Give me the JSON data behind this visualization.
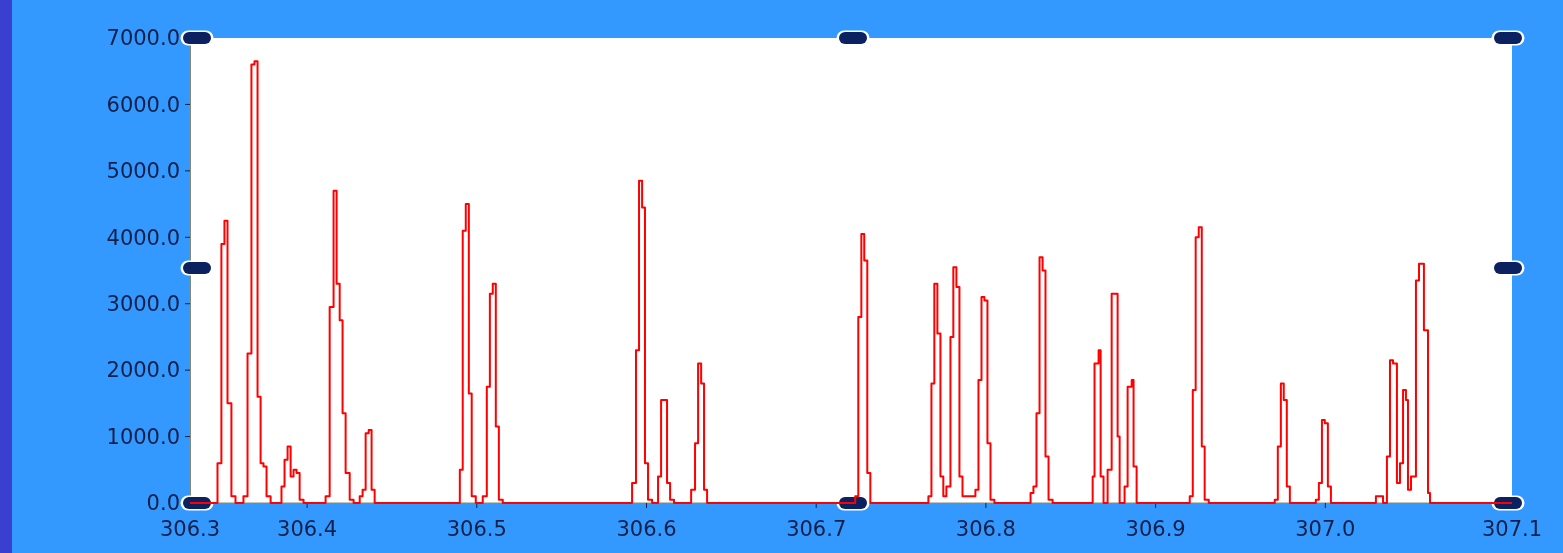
{
  "chart_data": {
    "type": "step",
    "color": "#ff0000",
    "x": [
      306.331,
      306.3436,
      306.3472,
      306.3495,
      306.3513,
      306.3531,
      306.3554,
      306.3578,
      306.3625,
      306.3649,
      306.3672,
      306.369,
      306.3708,
      306.3726,
      306.3743,
      306.3761,
      306.3785,
      306.3849,
      306.3867,
      306.3885,
      306.3903,
      306.392,
      306.3938,
      306.3956,
      306.3979,
      306.4109,
      306.4133,
      306.4156,
      306.4174,
      306.4192,
      306.4209,
      306.4227,
      306.4251,
      306.4274,
      306.431,
      306.4327,
      306.4345,
      306.4363,
      306.438,
      306.4398,
      306.4876,
      306.49,
      306.4917,
      306.4935,
      306.4953,
      306.497,
      306.4994,
      306.5035,
      306.5059,
      306.5077,
      306.5094,
      306.5112,
      306.513,
      306.5153,
      306.5915,
      306.5938,
      306.5956,
      306.5974,
      306.5991,
      306.6009,
      306.6033,
      306.6068,
      306.6086,
      306.6103,
      306.6121,
      306.6139,
      306.6162,
      306.6263,
      306.6286,
      306.6304,
      306.6322,
      306.6339,
      306.6357,
      306.723,
      306.7248,
      306.7266,
      306.7283,
      306.7301,
      306.7319,
      306.7661,
      306.7679,
      306.7696,
      306.7714,
      306.7732,
      306.7749,
      306.7767,
      306.7791,
      306.7808,
      306.7826,
      306.7844,
      306.7862,
      306.7938,
      306.7956,
      306.7974,
      306.7991,
      306.8009,
      306.8027,
      306.805,
      306.8263,
      306.828,
      306.8298,
      306.8316,
      306.8334,
      306.8351,
      306.8369,
      306.8393,
      306.8629,
      306.864,
      306.8664,
      306.8676,
      306.8693,
      306.8717,
      306.8741,
      306.8776,
      306.8788,
      306.8817,
      306.8835,
      306.8859,
      306.887,
      306.8888,
      306.9201,
      306.9219,
      306.9236,
      306.9254,
      306.9272,
      306.9289,
      306.9313,
      306.9702,
      306.972,
      306.9738,
      306.9755,
      306.9773,
      306.9791,
      306.9944,
      306.9962,
      306.998,
      306.9997,
      307.0015,
      307.0033,
      307.0298,
      307.034,
      307.0363,
      307.0381,
      307.0399,
      307.0422,
      307.044,
      307.0458,
      307.0475,
      307.0487,
      307.0505,
      307.0534,
      307.0552,
      307.0581,
      307.0605,
      307.0617,
      307.11
    ],
    "values": [
      0,
      0,
      600,
      3900,
      4250,
      1500,
      100,
      0,
      100,
      2250,
      6600,
      6650,
      1600,
      600,
      550,
      100,
      0,
      250,
      650,
      850,
      400,
      500,
      450,
      50,
      0,
      100,
      2950,
      4700,
      3300,
      2750,
      1350,
      450,
      50,
      0,
      100,
      200,
      1050,
      1100,
      200,
      0,
      0,
      500,
      4100,
      4500,
      1650,
      100,
      0,
      100,
      1750,
      3150,
      3300,
      1150,
      50,
      0,
      300,
      2300,
      4850,
      4450,
      600,
      50,
      0,
      400,
      1550,
      1550,
      300,
      50,
      0,
      200,
      900,
      2100,
      1800,
      200,
      0,
      100,
      2800,
      4050,
      3650,
      450,
      0,
      100,
      1800,
      3300,
      2550,
      400,
      100,
      250,
      2500,
      3550,
      3250,
      400,
      100,
      200,
      1850,
      3100,
      3050,
      900,
      50,
      0,
      150,
      250,
      1350,
      3700,
      3500,
      700,
      50,
      0,
      400,
      2100,
      2300,
      400,
      0,
      500,
      3150,
      1000,
      0,
      250,
      1750,
      1850,
      550,
      0,
      100,
      1700,
      4000,
      4150,
      850,
      50,
      0,
      50,
      850,
      1800,
      1550,
      250,
      0,
      50,
      300,
      1250,
      1200,
      250,
      0,
      100,
      0,
      700,
      2150,
      2100,
      300,
      600,
      1700,
      1550,
      200,
      400,
      3350,
      3600,
      2600,
      150,
      0,
      0
    ],
    "xlim": [
      306.331,
      307.11
    ],
    "xticks": [
      {
        "value": 306.331,
        "label": "306.3"
      },
      306.4,
      306.5,
      306.6,
      306.7,
      306.8,
      306.9,
      {
        "value": 307.0,
        "label": "307.0"
      },
      {
        "value": 307.11,
        "label": "307.1"
      }
    ],
    "ylim": [
      0,
      7000
    ],
    "yticks": [
      {
        "value": 0,
        "label": "0.0"
      },
      {
        "value": 1000,
        "label": "1000.0"
      },
      {
        "value": 2000,
        "label": "2000.0"
      },
      {
        "value": 3000,
        "label": "3000.0"
      },
      {
        "value": 4000,
        "label": "4000.0"
      },
      {
        "value": 5000,
        "label": "5000.0"
      },
      {
        "value": 6000,
        "label": "6000.0"
      },
      {
        "value": 7000,
        "label": "7000.0"
      }
    ],
    "grid": false
  }
}
